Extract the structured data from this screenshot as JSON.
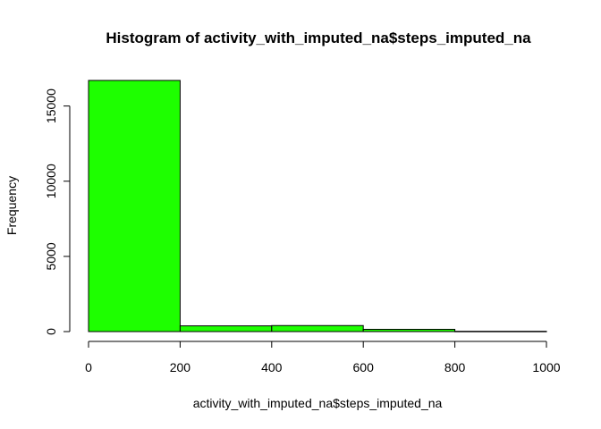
{
  "chart_data": {
    "type": "bar",
    "title": "Histogram of activity_with_imputed_na$steps_imputed_na",
    "xlabel": "activity_with_imputed_na$steps_imputed_na",
    "ylabel": "Frequency",
    "bins": [
      {
        "start": 0,
        "end": 200,
        "count": 16700
      },
      {
        "start": 200,
        "end": 400,
        "count": 380
      },
      {
        "start": 400,
        "end": 600,
        "count": 400
      },
      {
        "start": 600,
        "end": 800,
        "count": 150
      },
      {
        "start": 800,
        "end": 1000,
        "count": 20
      }
    ],
    "xlim": [
      0,
      1000
    ],
    "ylim": [
      0,
      16700
    ],
    "xticks": [
      0,
      200,
      400,
      600,
      800,
      1000
    ],
    "yticks": [
      0,
      5000,
      10000,
      15000
    ],
    "bar_color": "#1eff00",
    "bar_border_color": "#000000",
    "grid": false
  }
}
